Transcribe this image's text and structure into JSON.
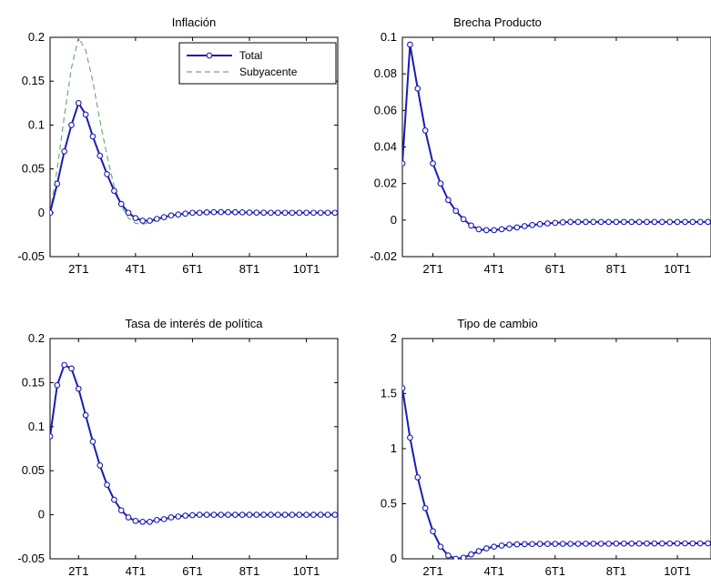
{
  "colors": {
    "total": "#1c1cb4",
    "subyacente": "#6fae6f",
    "axis": "#000000"
  },
  "chart_data": [
    {
      "type": "line",
      "title": "Inflación",
      "xlabel": "",
      "ylabel": "",
      "xlim": [
        1,
        11.1
      ],
      "ylim": [
        -0.05,
        0.2
      ],
      "x_ticks": [
        2,
        4,
        6,
        8,
        10
      ],
      "x_tick_labels": [
        "2T1",
        "4T1",
        "6T1",
        "8T1",
        "10T1"
      ],
      "y_ticks": [
        -0.05,
        0,
        0.05,
        0.1,
        0.15,
        0.2
      ],
      "y_tick_labels": [
        "-0.05",
        "0",
        "0.05",
        "0.1",
        "0.15",
        "0.2"
      ],
      "grid": false,
      "legend": "top-right",
      "series": [
        {
          "name": "Total",
          "style": "solid-marker",
          "x": [
            1,
            1.25,
            1.5,
            1.75,
            2,
            2.25,
            2.5,
            2.75,
            3,
            3.25,
            3.5,
            3.75,
            4,
            4.25,
            4.5,
            4.75,
            5,
            5.25,
            5.5,
            5.75,
            6,
            6.25,
            6.5,
            6.75,
            7,
            7.25,
            7.5,
            7.75,
            8,
            8.25,
            8.5,
            8.75,
            9,
            9.25,
            9.5,
            9.75,
            10,
            10.25,
            10.5,
            10.75,
            11
          ],
          "values": [
            0,
            0.033,
            0.07,
            0.1,
            0.125,
            0.112,
            0.087,
            0.065,
            0.044,
            0.025,
            0.01,
            0,
            -0.006,
            -0.009,
            -0.009,
            -0.007,
            -0.005,
            -0.003,
            -0.002,
            -0.001,
            0,
            0,
            0.0005,
            0.0007,
            0.0008,
            0.0007,
            0.0006,
            0.0005,
            0.0003,
            0.0002,
            0.0001,
            0,
            0,
            0,
            0,
            0,
            0,
            0,
            0,
            0,
            0
          ]
        },
        {
          "name": "Subyacente",
          "style": "dashed",
          "x": [
            1,
            1.25,
            1.5,
            1.75,
            2,
            2.25,
            2.5,
            2.75,
            3,
            3.25,
            3.5,
            3.75,
            4,
            4.25,
            4.5,
            4.75,
            5,
            5.25,
            5.5,
            5.75,
            6,
            6.25,
            6.5,
            6.75,
            7,
            7.25,
            7.5,
            7.75,
            8,
            8.25,
            8.5,
            8.75,
            9,
            9.25,
            9.5,
            9.75,
            10,
            10.25,
            10.5,
            10.75,
            11
          ],
          "values": [
            0,
            0.05,
            0.11,
            0.165,
            0.2,
            0.185,
            0.15,
            0.105,
            0.065,
            0.03,
            0.008,
            -0.006,
            -0.012,
            -0.013,
            -0.011,
            -0.008,
            -0.005,
            -0.003,
            -0.002,
            -0.001,
            0,
            0,
            0,
            0,
            0,
            0,
            0,
            0,
            0,
            0,
            0,
            0,
            0,
            0,
            0,
            0,
            0,
            0,
            0,
            0,
            0
          ]
        }
      ]
    },
    {
      "type": "line",
      "title": "Brecha Producto",
      "xlabel": "",
      "ylabel": "",
      "xlim": [
        1,
        11.1
      ],
      "ylim": [
        -0.02,
        0.1
      ],
      "x_ticks": [
        2,
        4,
        6,
        8,
        10
      ],
      "x_tick_labels": [
        "2T1",
        "4T1",
        "6T1",
        "8T1",
        "10T1"
      ],
      "y_ticks": [
        -0.02,
        0,
        0.02,
        0.04,
        0.06,
        0.08,
        0.1
      ],
      "y_tick_labels": [
        "-0.02",
        "0",
        "0.02",
        "0.04",
        "0.06",
        "0.08",
        "0.1"
      ],
      "grid": false,
      "series": [
        {
          "name": "Total",
          "style": "solid-marker",
          "x": [
            1,
            1.25,
            1.5,
            1.75,
            2,
            2.25,
            2.5,
            2.75,
            3,
            3.25,
            3.5,
            3.75,
            4,
            4.25,
            4.5,
            4.75,
            5,
            5.25,
            5.5,
            5.75,
            6,
            6.25,
            6.5,
            6.75,
            7,
            7.25,
            7.5,
            7.75,
            8,
            8.25,
            8.5,
            8.75,
            9,
            9.25,
            9.5,
            9.75,
            10,
            10.25,
            10.5,
            10.75,
            11
          ],
          "values": [
            0.031,
            0.096,
            0.072,
            0.049,
            0.031,
            0.02,
            0.011,
            0.005,
            0.0005,
            -0.003,
            -0.005,
            -0.0055,
            -0.0055,
            -0.005,
            -0.0045,
            -0.004,
            -0.0033,
            -0.0027,
            -0.0022,
            -0.0018,
            -0.0015,
            -0.0012,
            -0.001,
            -0.001,
            -0.001,
            -0.001,
            -0.001,
            -0.001,
            -0.001,
            -0.001,
            -0.001,
            -0.001,
            -0.001,
            -0.001,
            -0.001,
            -0.001,
            -0.001,
            -0.001,
            -0.001,
            -0.001,
            -0.001
          ]
        }
      ]
    },
    {
      "type": "line",
      "title": "Tasa de interés de política",
      "xlabel": "",
      "ylabel": "",
      "xlim": [
        1,
        11.1
      ],
      "ylim": [
        -0.05,
        0.2
      ],
      "x_ticks": [
        2,
        4,
        6,
        8,
        10
      ],
      "x_tick_labels": [
        "2T1",
        "4T1",
        "6T1",
        "8T1",
        "10T1"
      ],
      "y_ticks": [
        -0.05,
        0,
        0.05,
        0.1,
        0.15,
        0.2
      ],
      "y_tick_labels": [
        "-0.05",
        "0",
        "0.05",
        "0.1",
        "0.15",
        "0.2"
      ],
      "grid": false,
      "series": [
        {
          "name": "Total",
          "style": "solid-marker",
          "x": [
            1,
            1.25,
            1.5,
            1.75,
            2,
            2.25,
            2.5,
            2.75,
            3,
            3.25,
            3.5,
            3.75,
            4,
            4.25,
            4.5,
            4.75,
            5,
            5.25,
            5.5,
            5.75,
            6,
            6.25,
            6.5,
            6.75,
            7,
            7.25,
            7.5,
            7.75,
            8,
            8.25,
            8.5,
            8.75,
            9,
            9.25,
            9.5,
            9.75,
            10,
            10.25,
            10.5,
            10.75,
            11
          ],
          "values": [
            0.089,
            0.147,
            0.17,
            0.166,
            0.143,
            0.113,
            0.083,
            0.056,
            0.034,
            0.017,
            0.005,
            -0.003,
            -0.007,
            -0.008,
            -0.008,
            -0.006,
            -0.005,
            -0.003,
            -0.002,
            -0.001,
            -0.0005,
            0,
            0,
            0,
            0,
            0,
            0,
            0,
            0,
            0,
            0,
            0,
            0,
            0,
            0,
            0,
            0,
            0,
            0,
            0,
            0
          ]
        }
      ]
    },
    {
      "type": "line",
      "title": "Tipo de cambio",
      "xlabel": "",
      "ylabel": "",
      "xlim": [
        1,
        11.1
      ],
      "ylim": [
        0,
        2
      ],
      "x_ticks": [
        2,
        4,
        6,
        8,
        10
      ],
      "x_tick_labels": [
        "2T1",
        "4T1",
        "6T1",
        "8T1",
        "10T1"
      ],
      "y_ticks": [
        0,
        0.5,
        1,
        1.5,
        2
      ],
      "y_tick_labels": [
        "0",
        "0.5",
        "1",
        "1.5",
        "2"
      ],
      "grid": false,
      "series": [
        {
          "name": "Total",
          "style": "solid-marker",
          "x": [
            1,
            1.25,
            1.5,
            1.75,
            2,
            2.25,
            2.5,
            2.75,
            3,
            3.25,
            3.5,
            3.75,
            4,
            4.25,
            4.5,
            4.75,
            5,
            5.25,
            5.5,
            5.75,
            6,
            6.25,
            6.5,
            6.75,
            7,
            7.25,
            7.5,
            7.75,
            8,
            8.25,
            8.5,
            8.75,
            9,
            9.25,
            9.5,
            9.75,
            10,
            10.25,
            10.5,
            10.75,
            11
          ],
          "values": [
            1.55,
            1.1,
            0.74,
            0.46,
            0.25,
            0.11,
            0.03,
            0,
            0.01,
            0.04,
            0.07,
            0.095,
            0.11,
            0.12,
            0.128,
            0.131,
            0.133,
            0.134,
            0.135,
            0.135,
            0.135,
            0.136,
            0.136,
            0.136,
            0.137,
            0.137,
            0.137,
            0.137,
            0.138,
            0.138,
            0.138,
            0.138,
            0.139,
            0.139,
            0.139,
            0.139,
            0.14,
            0.14,
            0.14,
            0.14,
            0.14
          ]
        }
      ]
    }
  ]
}
